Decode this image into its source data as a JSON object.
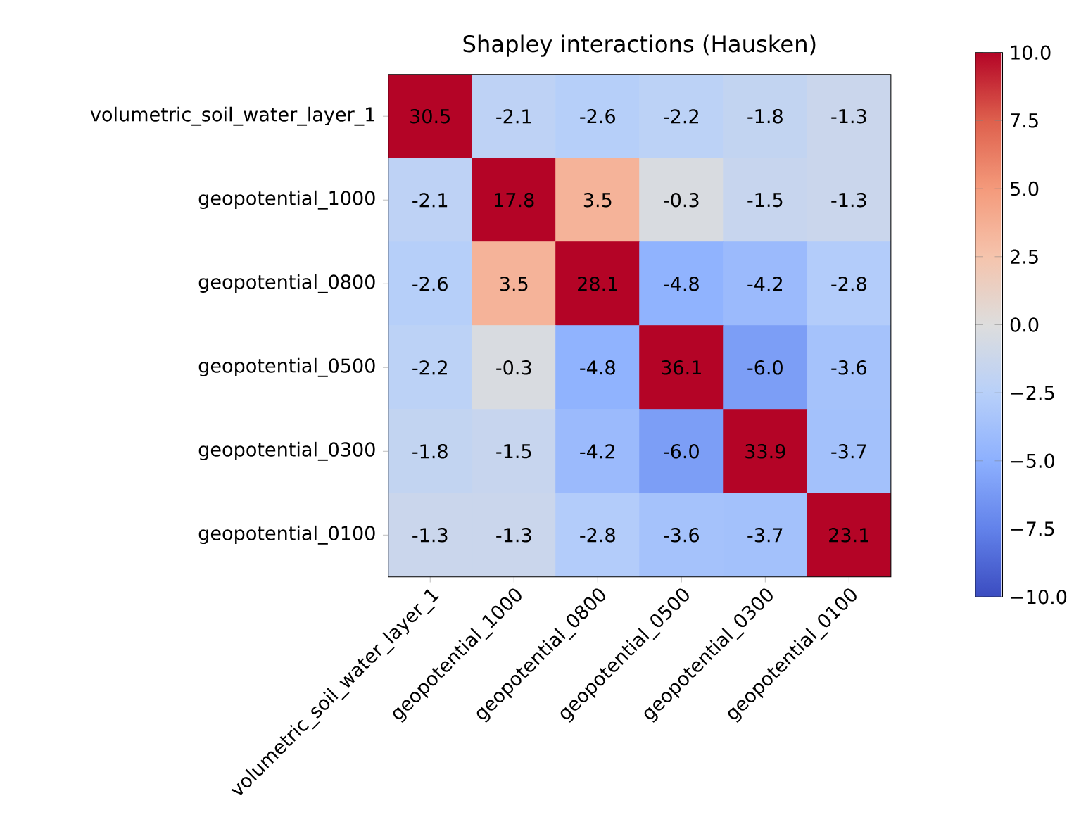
{
  "chart_data": {
    "type": "heatmap",
    "title": "Shapley interactions (Hausken)",
    "categories": [
      "volumetric_soil_water_layer_1",
      "geopotential_1000",
      "geopotential_0800",
      "geopotential_0500",
      "geopotential_0300",
      "geopotential_0100"
    ],
    "y_categories": [
      "volumetric_soil_water_layer_1",
      "geopotential_1000",
      "geopotential_0800",
      "geopotential_0500",
      "geopotential_0300",
      "geopotential_0100"
    ],
    "cells": [
      [
        30.5,
        -2.1,
        -2.6,
        -2.2,
        -1.8,
        -1.3
      ],
      [
        -2.1,
        17.8,
        3.5,
        -0.3,
        -1.5,
        -1.3
      ],
      [
        -2.6,
        3.5,
        28.1,
        -4.8,
        -4.2,
        -2.8
      ],
      [
        -2.2,
        -0.3,
        -4.8,
        36.1,
        -6.0,
        -3.6
      ],
      [
        -1.8,
        -1.5,
        -4.2,
        -6.0,
        33.9,
        -3.7
      ],
      [
        -1.3,
        -1.3,
        -2.8,
        -3.6,
        -3.7,
        23.1
      ]
    ],
    "cell_labels": [
      [
        "30.5",
        "-2.1",
        "-2.6",
        "-2.2",
        "-1.8",
        "-1.3"
      ],
      [
        "-2.1",
        "17.8",
        "3.5",
        "-0.3",
        "-1.5",
        "-1.3"
      ],
      [
        "-2.6",
        "3.5",
        "28.1",
        "-4.8",
        "-4.2",
        "-2.8"
      ],
      [
        "-2.2",
        "-0.3",
        "-4.8",
        "36.1",
        "-6.0",
        "-3.6"
      ],
      [
        "-1.8",
        "-1.5",
        "-4.2",
        "-6.0",
        "33.9",
        "-3.7"
      ],
      [
        "-1.3",
        "-1.3",
        "-2.8",
        "-3.6",
        "-3.7",
        "23.1"
      ]
    ],
    "clim": [
      -10,
      10
    ],
    "cticks": [
      {
        "value": -10,
        "label": "−10.0"
      },
      {
        "value": -7.5,
        "label": "−7.5"
      },
      {
        "value": -5,
        "label": "−5.0"
      },
      {
        "value": -2.5,
        "label": "−2.5"
      },
      {
        "value": 0,
        "label": "0.0"
      },
      {
        "value": 2.5,
        "label": "2.5"
      },
      {
        "value": 5,
        "label": "5.0"
      },
      {
        "value": 7.5,
        "label": "7.5"
      },
      {
        "value": 10,
        "label": "10.0"
      }
    ]
  }
}
